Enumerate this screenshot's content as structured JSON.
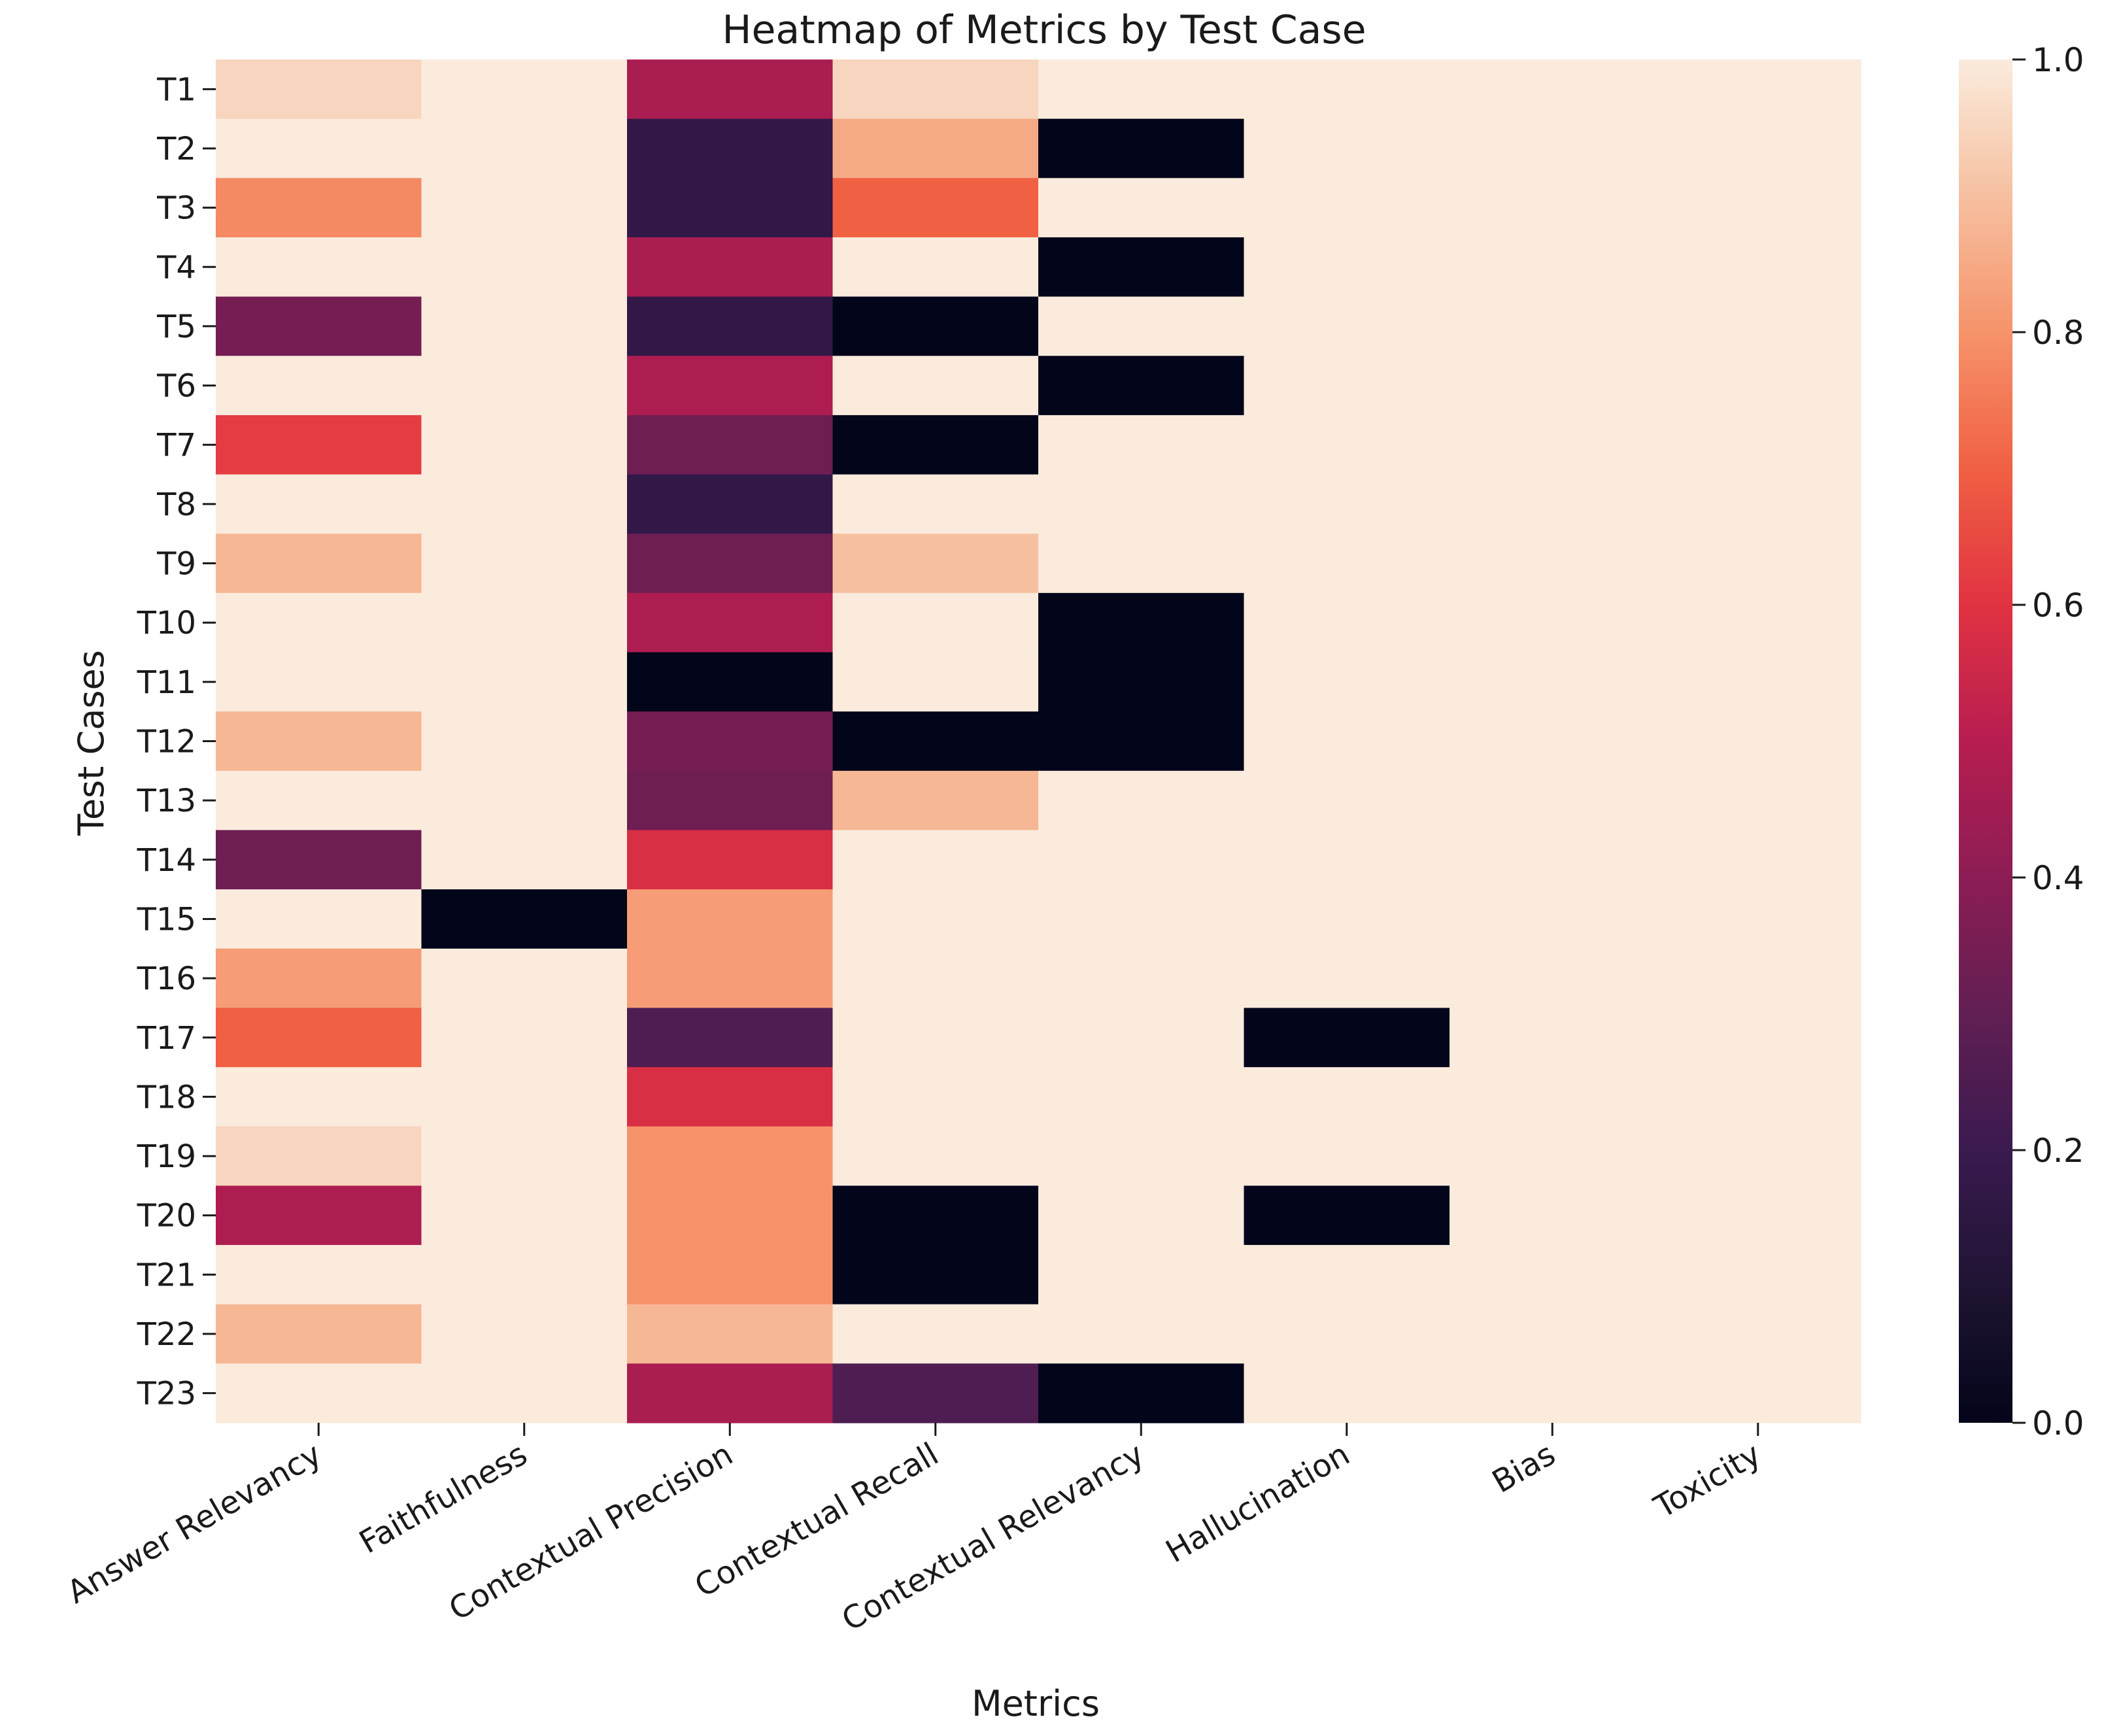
{
  "chart_data": {
    "type": "heatmap",
    "title": "Heatmap of Metrics by Test Case",
    "xlabel": "Metrics",
    "ylabel": "Test Cases",
    "columns": [
      "Answer Relevancy",
      "Faithfulness",
      "Contextual Precision",
      "Contextual Recall",
      "Contextual Relevancy",
      "Hallucination",
      "Bias",
      "Toxicity"
    ],
    "rows": [
      "T1",
      "T2",
      "T3",
      "T4",
      "T5",
      "T6",
      "T7",
      "T8",
      "T9",
      "T10",
      "T11",
      "T12",
      "T13",
      "T14",
      "T15",
      "T16",
      "T17",
      "T18",
      "T19",
      "T20",
      "T21",
      "T22",
      "T23"
    ],
    "values": [
      [
        0.95,
        1.0,
        0.47,
        0.95,
        1.0,
        1.0,
        1.0,
        1.0
      ],
      [
        1.0,
        1.0,
        0.17,
        0.85,
        0.0,
        1.0,
        1.0,
        1.0
      ],
      [
        0.78,
        1.0,
        0.17,
        0.7,
        1.0,
        1.0,
        1.0,
        1.0
      ],
      [
        1.0,
        1.0,
        0.47,
        1.0,
        0.0,
        1.0,
        1.0,
        1.0
      ],
      [
        0.35,
        1.0,
        0.17,
        0.0,
        1.0,
        1.0,
        1.0,
        1.0
      ],
      [
        1.0,
        1.0,
        0.48,
        1.0,
        0.0,
        1.0,
        1.0,
        1.0
      ],
      [
        0.62,
        1.0,
        0.33,
        0.0,
        1.0,
        1.0,
        1.0,
        1.0
      ],
      [
        1.0,
        1.0,
        0.17,
        1.0,
        1.0,
        1.0,
        1.0,
        1.0
      ],
      [
        0.88,
        1.0,
        0.33,
        0.9,
        1.0,
        1.0,
        1.0,
        1.0
      ],
      [
        1.0,
        1.0,
        0.48,
        1.0,
        0.0,
        1.0,
        1.0,
        1.0
      ],
      [
        1.0,
        1.0,
        0.0,
        1.0,
        0.0,
        1.0,
        1.0,
        1.0
      ],
      [
        0.88,
        1.0,
        0.35,
        0.0,
        0.0,
        1.0,
        1.0,
        1.0
      ],
      [
        1.0,
        1.0,
        0.33,
        0.88,
        1.0,
        1.0,
        1.0,
        1.0
      ],
      [
        0.33,
        1.0,
        0.58,
        1.0,
        1.0,
        1.0,
        1.0,
        1.0
      ],
      [
        1.0,
        0.0,
        0.82,
        1.0,
        1.0,
        1.0,
        1.0,
        1.0
      ],
      [
        0.82,
        1.0,
        0.82,
        1.0,
        1.0,
        1.0,
        1.0,
        1.0
      ],
      [
        0.7,
        1.0,
        0.25,
        1.0,
        1.0,
        0.0,
        1.0,
        1.0
      ],
      [
        1.0,
        1.0,
        0.58,
        1.0,
        1.0,
        1.0,
        1.0,
        1.0
      ],
      [
        0.95,
        1.0,
        0.8,
        1.0,
        1.0,
        1.0,
        1.0,
        1.0
      ],
      [
        0.48,
        1.0,
        0.8,
        0.0,
        1.0,
        0.0,
        1.0,
        1.0
      ],
      [
        1.0,
        1.0,
        0.8,
        0.0,
        1.0,
        1.0,
        1.0,
        1.0
      ],
      [
        0.88,
        1.0,
        0.88,
        1.0,
        1.0,
        1.0,
        1.0,
        1.0
      ],
      [
        1.0,
        1.0,
        0.47,
        0.25,
        0.0,
        1.0,
        1.0,
        1.0
      ]
    ],
    "vmin": 0.0,
    "vmax": 1.0,
    "colormap": "rocket",
    "colorbar_ticks": [
      "0.0",
      "0.2",
      "0.4",
      "0.6",
      "0.8",
      "1.0"
    ],
    "colorbar_tick_values": [
      0.0,
      0.2,
      0.4,
      0.6,
      0.8,
      1.0
    ]
  }
}
